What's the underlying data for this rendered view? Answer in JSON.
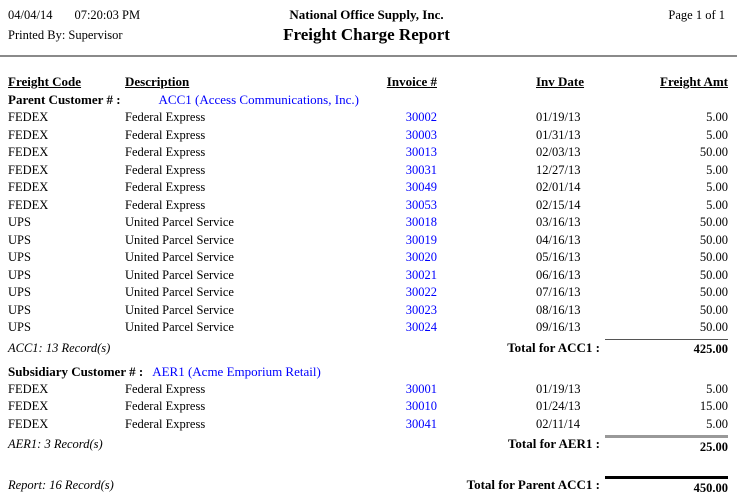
{
  "colors": {
    "link_blue": "#0000ff",
    "rule_gray": "#8a8a8a"
  },
  "header": {
    "date": "04/04/14",
    "time": "07:20:03 PM",
    "printed_by_label": "Printed By:",
    "printed_by": "Supervisor",
    "company": "National Office Supply, Inc.",
    "title": "Freight Charge Report",
    "page": "Page 1 of  1"
  },
  "columns": [
    "Freight Code",
    "Description",
    "Invoice #",
    "Inv Date",
    "Freight Amt"
  ],
  "sections": [
    {
      "type": "parent",
      "label": "Parent Customer # :",
      "customer": "ACC1 (Access Communications, Inc.)",
      "rows": [
        {
          "code": "FEDEX",
          "description": "Federal Express",
          "invoice": "30002",
          "date": "01/19/13",
          "amount": "5.00"
        },
        {
          "code": "FEDEX",
          "description": "Federal Express",
          "invoice": "30003",
          "date": "01/31/13",
          "amount": "5.00"
        },
        {
          "code": "FEDEX",
          "description": "Federal Express",
          "invoice": "30013",
          "date": "02/03/13",
          "amount": "50.00"
        },
        {
          "code": "FEDEX",
          "description": "Federal Express",
          "invoice": "30031",
          "date": "12/27/13",
          "amount": "5.00"
        },
        {
          "code": "FEDEX",
          "description": "Federal Express",
          "invoice": "30049",
          "date": "02/01/14",
          "amount": "5.00"
        },
        {
          "code": "FEDEX",
          "description": "Federal Express",
          "invoice": "30053",
          "date": "02/15/14",
          "amount": "5.00"
        },
        {
          "code": "UPS",
          "description": "United Parcel Service",
          "invoice": "30018",
          "date": "03/16/13",
          "amount": "50.00"
        },
        {
          "code": "UPS",
          "description": "United Parcel Service",
          "invoice": "30019",
          "date": "04/16/13",
          "amount": "50.00"
        },
        {
          "code": "UPS",
          "description": "United Parcel Service",
          "invoice": "30020",
          "date": "05/16/13",
          "amount": "50.00"
        },
        {
          "code": "UPS",
          "description": "United Parcel Service",
          "invoice": "30021",
          "date": "06/16/13",
          "amount": "50.00"
        },
        {
          "code": "UPS",
          "description": "United Parcel Service",
          "invoice": "30022",
          "date": "07/16/13",
          "amount": "50.00"
        },
        {
          "code": "UPS",
          "description": "United Parcel Service",
          "invoice": "30023",
          "date": "08/16/13",
          "amount": "50.00"
        },
        {
          "code": "UPS",
          "description": "United Parcel Service",
          "invoice": "30024",
          "date": "09/16/13",
          "amount": "50.00"
        }
      ],
      "record_note": "ACC1: 13 Record(s)",
      "total_label": "Total for ACC1 :",
      "total": "425.00"
    },
    {
      "type": "subsidiary",
      "label": "Subsidiary Customer # :",
      "customer": "AER1 (Acme Emporium Retail)",
      "rows": [
        {
          "code": "FEDEX",
          "description": "Federal Express",
          "invoice": "30001",
          "date": "01/19/13",
          "amount": "5.00"
        },
        {
          "code": "FEDEX",
          "description": "Federal Express",
          "invoice": "30010",
          "date": "01/24/13",
          "amount": "15.00"
        },
        {
          "code": "FEDEX",
          "description": "Federal Express",
          "invoice": "30041",
          "date": "02/11/14",
          "amount": "5.00"
        }
      ],
      "record_note": "AER1: 3 Record(s)",
      "total_label": "Total for AER1 :",
      "total": "25.00"
    }
  ],
  "report_summary": {
    "record_note": "Report: 16 Record(s)",
    "total_label": "Total for Parent ACC1 :",
    "total": "450.00"
  }
}
